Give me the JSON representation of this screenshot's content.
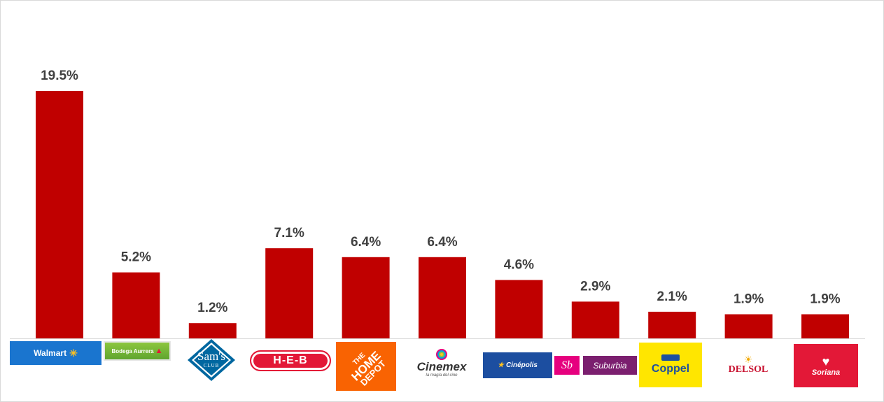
{
  "chart_data": {
    "type": "bar",
    "title": "",
    "xlabel": "",
    "ylabel": "",
    "ylim": [
      0,
      20
    ],
    "grid": false,
    "legend": "none",
    "bar_color": "#c00000",
    "label_color": "#404040",
    "categories": [
      "Walmart",
      "Bodega Aurrera",
      "Sam's Club",
      "H-E-B",
      "The Home Depot",
      "Cinemex",
      "Cinépolis",
      "Suburbia",
      "Coppel",
      "Del Sol",
      "Soriana"
    ],
    "values": [
      19.5,
      5.2,
      1.2,
      7.1,
      6.4,
      6.4,
      4.6,
      2.9,
      2.1,
      1.9,
      1.9
    ],
    "value_labels": [
      "19.5%",
      "5.2%",
      "1.2%",
      "7.1%",
      "6.4%",
      "6.4%",
      "4.6%",
      "2.9%",
      "2.1%",
      "1.9%",
      "1.9%"
    ]
  },
  "logos": {
    "walmart": {
      "text": "Walmart",
      "icon": "spark-icon",
      "color": "#1a75cf"
    },
    "bodega": {
      "text": "Bodega Aurrera",
      "icon": "bodega-logo",
      "color": "#8dc63f"
    },
    "sams": {
      "line1": "Sam's",
      "line2": "CLUB",
      "icon": "diamond-logo",
      "color": "#0067a0"
    },
    "heb": {
      "text": "H-E-B",
      "color": "#e31837"
    },
    "homedepot": {
      "line1": "THE",
      "line2": "HOME",
      "line3": "DEPOT",
      "color": "#f96302"
    },
    "cinemex": {
      "text": "Cinemex",
      "tagline": "la magia del cine",
      "icon": "swirl-icon"
    },
    "cinepolis": {
      "text": "Cinépolis",
      "icon": "star-icon",
      "color": "#1c4ea0"
    },
    "suburbia": {
      "mark": "Sb",
      "text": "Suburbia",
      "color": "#7b1f6f",
      "accent": "#e6007e"
    },
    "coppel": {
      "text": "Coppel",
      "color": "#ffe600",
      "accent": "#1c4ea0"
    },
    "delsol": {
      "text": "DELSOL",
      "icon": "sun-icon",
      "color": "#c8102e"
    },
    "soriana": {
      "text": "Soriana",
      "icon": "soriana-heart-icon",
      "color": "#e31837"
    }
  }
}
